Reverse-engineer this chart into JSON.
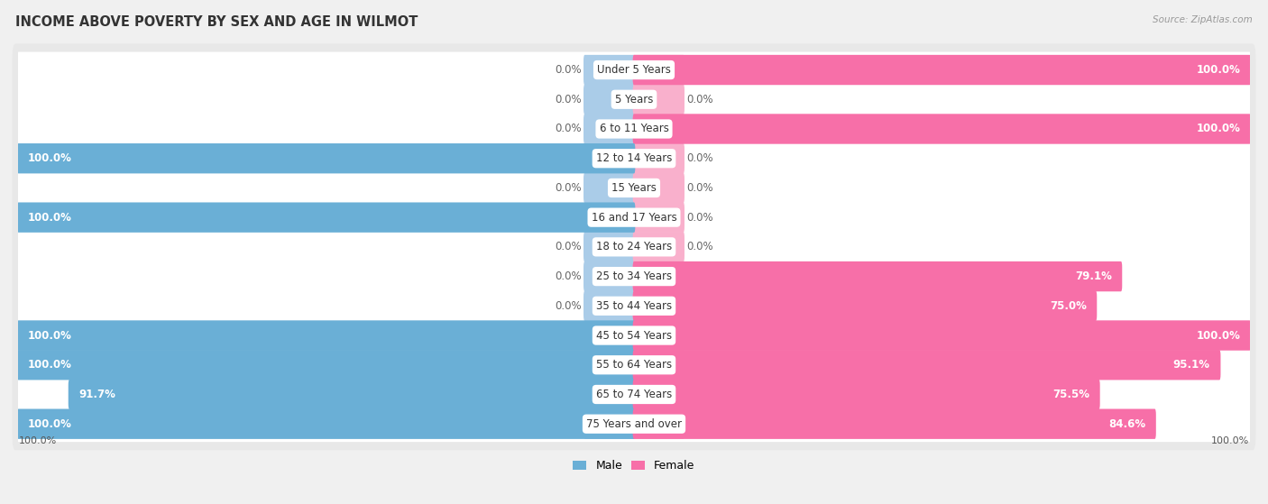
{
  "title": "INCOME ABOVE POVERTY BY SEX AND AGE IN WILMOT",
  "source": "Source: ZipAtlas.com",
  "categories": [
    "Under 5 Years",
    "5 Years",
    "6 to 11 Years",
    "12 to 14 Years",
    "15 Years",
    "16 and 17 Years",
    "18 to 24 Years",
    "25 to 34 Years",
    "35 to 44 Years",
    "45 to 54 Years",
    "55 to 64 Years",
    "65 to 74 Years",
    "75 Years and over"
  ],
  "male": [
    0.0,
    0.0,
    0.0,
    100.0,
    0.0,
    100.0,
    0.0,
    0.0,
    0.0,
    100.0,
    100.0,
    91.7,
    100.0
  ],
  "female": [
    100.0,
    0.0,
    100.0,
    0.0,
    0.0,
    0.0,
    0.0,
    79.1,
    75.0,
    100.0,
    95.1,
    75.5,
    84.6
  ],
  "male_color": "#7ec8e3",
  "male_color_full": "#6aafd6",
  "male_stub_color": "#aacce8",
  "female_color": "#f76fa8",
  "female_color_full": "#f76fa8",
  "female_stub_color": "#f9b0cc",
  "bg_color": "#f0f0f0",
  "row_bg_color": "#e8e8e8",
  "bar_bg_color": "#ffffff",
  "title_fontsize": 10.5,
  "label_fontsize": 8.5,
  "tick_fontsize": 8,
  "legend_fontsize": 9,
  "stub_size": 8,
  "xlim": 100,
  "bar_height": 0.62,
  "x_axis_label_left": "100.0%",
  "x_axis_label_right": "100.0%"
}
